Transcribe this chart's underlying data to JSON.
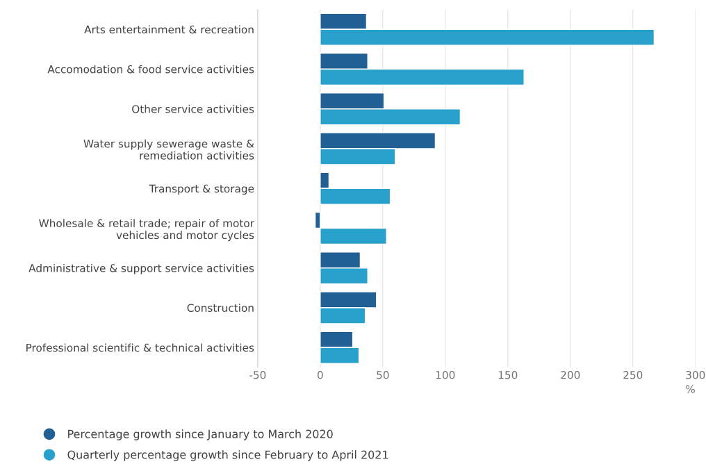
{
  "chart_data": {
    "type": "bar",
    "orientation": "horizontal",
    "xlabel": "%",
    "categories": [
      "Arts entertainment & recreation",
      "Accomodation & food service activities",
      "Other service activities",
      "Water supply sewerage waste &\nremediation activities",
      "Transport & storage",
      "Wholesale & retail trade; repair of motor\nvehicles and motor cycles",
      "Administrative & support service activities",
      "Construction",
      "Professional scientific & technical activities"
    ],
    "series": [
      {
        "name": "Percentage growth since January to March 2020",
        "color": "#206095",
        "values": [
          37,
          38,
          51,
          92,
          7,
          -4,
          32,
          45,
          26
        ]
      },
      {
        "name": "Quarterly percentage growth since February to April 2021",
        "color": "#27a0cc",
        "values": [
          267,
          163,
          112,
          60,
          56,
          53,
          38,
          36,
          31
        ]
      }
    ],
    "xlim": [
      -50,
      300
    ],
    "xticks": [
      -50,
      0,
      50,
      100,
      150,
      200,
      250,
      300
    ],
    "grid": "x",
    "legend": "bottom left"
  }
}
